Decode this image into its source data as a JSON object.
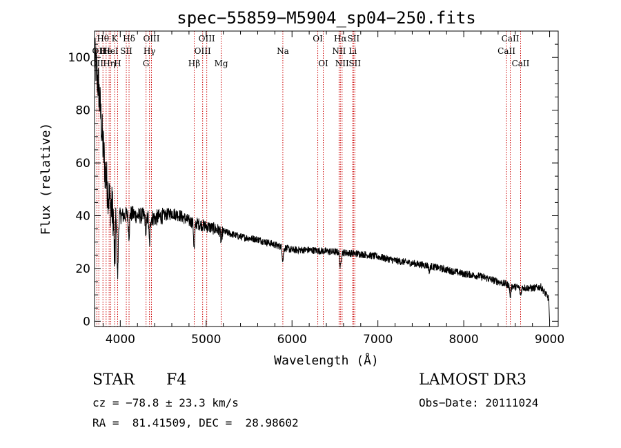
{
  "chart_data": {
    "type": "line",
    "title": "spec−55859−M5904_sp04−250.fits",
    "xlabel": "Wavelength (Å)",
    "ylabel": "Flux (relative)",
    "xlim": [
      3700,
      9100
    ],
    "ylim": [
      -2,
      110
    ],
    "x_ticks": [
      4000,
      5000,
      6000,
      7000,
      8000,
      9000
    ],
    "y_ticks": [
      0,
      20,
      40,
      60,
      80,
      100
    ],
    "spectrum_anchors": {
      "x": [
        3700,
        3720,
        3750,
        3790,
        3830,
        3880,
        3930,
        3970,
        4000,
        4050,
        4100,
        4200,
        4300,
        4400,
        4500,
        4600,
        4700,
        4800,
        4900,
        5000,
        5100,
        5200,
        5400,
        5600,
        5800,
        5900,
        6000,
        6200,
        6400,
        6600,
        6800,
        7000,
        7200,
        7400,
        7600,
        7800,
        8000,
        8200,
        8400,
        8600,
        8800,
        8900,
        9000
      ],
      "y": [
        100,
        96,
        88,
        70,
        55,
        45,
        40,
        39,
        40,
        40,
        41,
        40,
        40,
        39,
        40,
        41,
        40,
        38,
        37,
        36,
        35,
        34,
        32,
        31,
        29,
        28,
        27,
        27,
        26.5,
        26,
        25.5,
        24.5,
        23,
        22,
        21,
        19.5,
        18,
        17,
        15,
        13,
        12.5,
        13,
        8
      ]
    },
    "absorption_features": [
      {
        "x": 3934,
        "depth": 18
      },
      {
        "x": 3969,
        "depth": 22
      },
      {
        "x": 4101,
        "depth": 8
      },
      {
        "x": 4300,
        "depth": 6
      },
      {
        "x": 4340,
        "depth": 10
      },
      {
        "x": 4861,
        "depth": 10
      },
      {
        "x": 5175,
        "depth": 4
      },
      {
        "x": 5893,
        "depth": 5
      },
      {
        "x": 6563,
        "depth": 6
      },
      {
        "x": 7600,
        "depth": 2
      },
      {
        "x": 8542,
        "depth": 4
      },
      {
        "x": 8662,
        "depth": 3
      }
    ],
    "reference_lines": [
      {
        "wave": 3727,
        "label": "OII",
        "row": 2
      },
      {
        "wave": 3750,
        "label": "OII",
        "row": 1
      },
      {
        "wave": 3798,
        "label": "Hθ",
        "row": 0
      },
      {
        "wave": 3835,
        "label": "He",
        "row": 1
      },
      {
        "wave": 3870,
        "label": "Hη",
        "row": 2
      },
      {
        "wave": 3889,
        "label": "HeI",
        "row": 1
      },
      {
        "wave": 3934,
        "label": "K",
        "row": 0
      },
      {
        "wave": 3969,
        "label": "H",
        "row": 2
      },
      {
        "wave": 4070,
        "label": "SII",
        "row": 1
      },
      {
        "wave": 4102,
        "label": "Hδ",
        "row": 0
      },
      {
        "wave": 4300,
        "label": "G",
        "row": 2
      },
      {
        "wave": 4340,
        "label": "Hγ",
        "row": 1
      },
      {
        "wave": 4363,
        "label": "OIII",
        "row": 0
      },
      {
        "wave": 4861,
        "label": "Hβ",
        "row": 2
      },
      {
        "wave": 4959,
        "label": "OIII",
        "row": 1
      },
      {
        "wave": 5007,
        "label": "OIII",
        "row": 0
      },
      {
        "wave": 5175,
        "label": "Mg",
        "row": 2
      },
      {
        "wave": 5893,
        "label": "Na",
        "row": 1
      },
      {
        "wave": 6300,
        "label": "OI",
        "row": 0
      },
      {
        "wave": 6364,
        "label": "OI",
        "row": 2
      },
      {
        "wave": 6548,
        "label": "NII",
        "row": 1
      },
      {
        "wave": 6563,
        "label": "Hα",
        "row": 0
      },
      {
        "wave": 6583,
        "label": "NII",
        "row": 2
      },
      {
        "wave": 6707,
        "label": "Li",
        "row": 1
      },
      {
        "wave": 6716,
        "label": "SII",
        "row": 0
      },
      {
        "wave": 6731,
        "label": "SII",
        "row": 2
      },
      {
        "wave": 8498,
        "label": "CaII",
        "row": 1
      },
      {
        "wave": 8542,
        "label": "CaII",
        "row": 0
      },
      {
        "wave": 8662,
        "label": "CaII",
        "row": 2
      }
    ],
    "line_color": "#000000",
    "reference_line_color": "#cc0000"
  },
  "info": {
    "class": "STAR",
    "subclass": "F4",
    "survey": "LAMOST DR3",
    "redshift": "cz = −78.8 ± 23.3 km/s",
    "obs_date": "Obs−Date: 20111024",
    "coords": "RA =  81.41509, DEC =  28.98602"
  }
}
